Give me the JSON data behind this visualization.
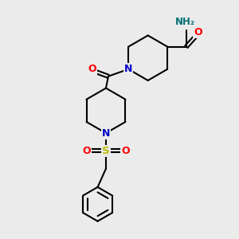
{
  "bg_color": "#ebebeb",
  "atom_colors": {
    "C": "#000000",
    "N": "#0000cc",
    "O": "#ff0000",
    "S": "#bbbb00",
    "H": "#007070"
  },
  "bond_color": "#000000",
  "bond_width": 1.5,
  "figsize": [
    3.0,
    3.0
  ],
  "dpi": 100,
  "xlim": [
    0,
    10
  ],
  "ylim": [
    0,
    10
  ]
}
